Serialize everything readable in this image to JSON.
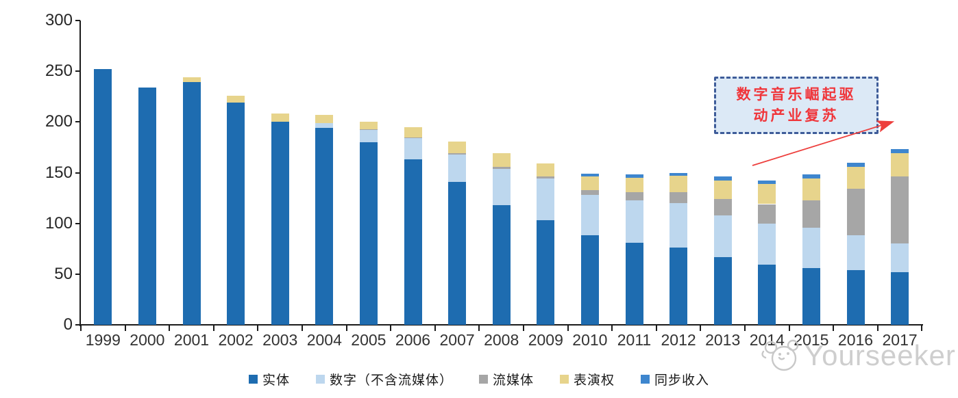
{
  "chart_data": {
    "type": "bar",
    "stacked": true,
    "title": "",
    "xlabel": "",
    "ylabel": "",
    "ylim": [
      0,
      300
    ],
    "yticks": [
      0,
      50,
      100,
      150,
      200,
      250,
      300
    ],
    "grid": false,
    "legend_position": "bottom",
    "categories": [
      "1999",
      "2000",
      "2001",
      "2002",
      "2003",
      "2004",
      "2005",
      "2006",
      "2007",
      "2008",
      "2009",
      "2010",
      "2011",
      "2012",
      "2013",
      "2014",
      "2015",
      "2016",
      "2017"
    ],
    "series": [
      {
        "name": "实体",
        "color": "#1e6cb0",
        "values": [
          252,
          234,
          239,
          219,
          200,
          194,
          180,
          163,
          141,
          118,
          103,
          88,
          81,
          76,
          67,
          59,
          56,
          54,
          52
        ]
      },
      {
        "name": "数字（不含流媒体）",
        "color": "#bdd7ee",
        "values": [
          0,
          0,
          0,
          0,
          0,
          5,
          12,
          21,
          27,
          36,
          41,
          40,
          42,
          44,
          41,
          41,
          40,
          34,
          28
        ]
      },
      {
        "name": "流媒体",
        "color": "#a6a6a6",
        "values": [
          0,
          0,
          0,
          0,
          0,
          0,
          1,
          1,
          1,
          2,
          2,
          5,
          8,
          11,
          16,
          19,
          27,
          46,
          66
        ]
      },
      {
        "name": "表演权",
        "color": "#e7d48c",
        "values": [
          0,
          0,
          5,
          7,
          8,
          8,
          7,
          10,
          12,
          13,
          13,
          13,
          14,
          16,
          18,
          20,
          21,
          22,
          23
        ]
      },
      {
        "name": "同步收入",
        "color": "#3e86ce",
        "values": [
          0,
          0,
          0,
          0,
          0,
          0,
          0,
          0,
          0,
          0,
          0,
          3,
          3,
          3,
          4,
          3,
          4,
          4,
          4
        ]
      }
    ]
  },
  "annotation": {
    "line1": "数字音乐崛起驱",
    "line2": "动产业复苏",
    "box_fill": "#dce9f6",
    "border_color": "#3e5c99",
    "text_color": "#f0353a",
    "arrow_color": "#ed3f3d"
  },
  "watermark": {
    "text": "Yourseeker",
    "color": "#cccccc"
  }
}
